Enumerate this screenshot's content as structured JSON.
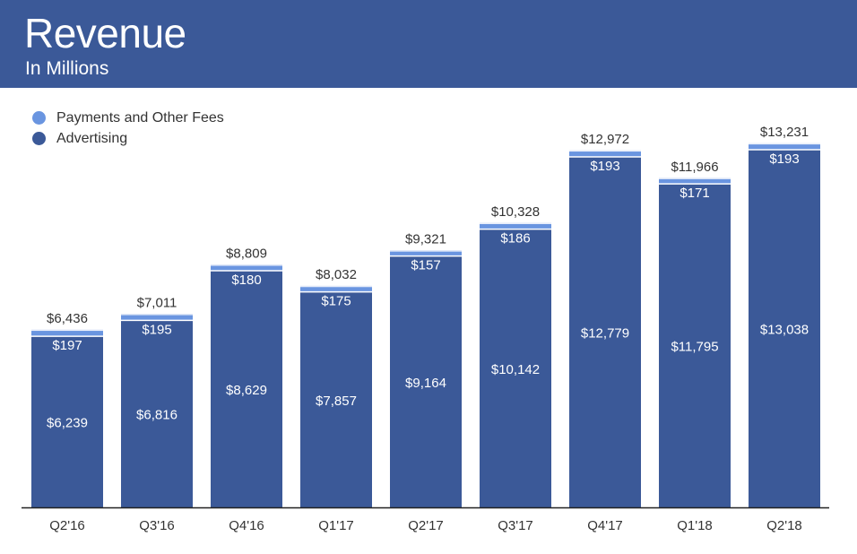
{
  "header": {
    "title": "Revenue",
    "subtitle": "In Millions"
  },
  "colors": {
    "header_bg": "#3b5998",
    "advertising": "#3b5998",
    "payments": "#6a95e0"
  },
  "chart_data": {
    "type": "bar",
    "stacked": true,
    "categories": [
      "Q2'16",
      "Q3'16",
      "Q4'16",
      "Q1'17",
      "Q2'17",
      "Q3'17",
      "Q4'17",
      "Q1'18",
      "Q2'18"
    ],
    "series": [
      {
        "name": "Advertising",
        "values": [
          6239,
          6816,
          8629,
          7857,
          9164,
          10142,
          12779,
          11795,
          13038
        ]
      },
      {
        "name": "Payments and Other Fees",
        "values": [
          197,
          195,
          180,
          175,
          157,
          186,
          193,
          171,
          193
        ]
      }
    ],
    "totals": [
      6436,
      7011,
      8809,
      8032,
      9321,
      10328,
      12972,
      11966,
      13231
    ],
    "labels": {
      "totals": [
        "$6,436",
        "$7,011",
        "$8,809",
        "$8,032",
        "$9,321",
        "$10,328",
        "$12,972",
        "$11,966",
        "$13,231"
      ],
      "advertising": [
        "$6,239",
        "$6,816",
        "$8,629",
        "$7,857",
        "$9,164",
        "$10,142",
        "$12,779",
        "$11,795",
        "$13,038"
      ],
      "payments": [
        "$197",
        "$195",
        "$180",
        "$175",
        "$157",
        "$186",
        "$193",
        "$171",
        "$193"
      ]
    },
    "legend": [
      "Payments and Other Fees",
      "Advertising"
    ],
    "legend_position": "top-left",
    "ylim": [
      0,
      14000
    ],
    "grid": false
  }
}
